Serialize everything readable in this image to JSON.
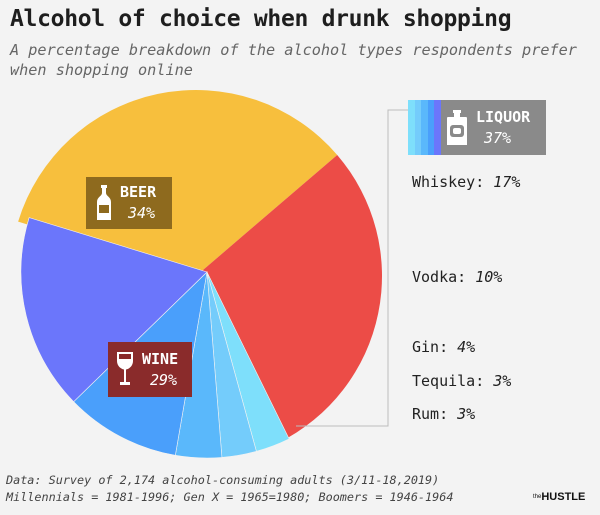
{
  "header": {
    "title": "Alcohol of choice when drunk shopping",
    "subtitle": "A percentage breakdown of the alcohol types respondents prefer when shopping online"
  },
  "chart_data": {
    "type": "pie",
    "title": "Alcohol of choice when drunk shopping",
    "subtitle": "A percentage breakdown of the alcohol types respondents prefer when shopping online",
    "slices": [
      {
        "name": "Beer",
        "value": 34,
        "color": "#f7bf3d",
        "group": "Beer"
      },
      {
        "name": "Wine",
        "value": 29,
        "color": "#ec4c47",
        "group": "Wine"
      },
      {
        "name": "Rum",
        "value": 3,
        "color": "#7edffb",
        "group": "Liquor"
      },
      {
        "name": "Tequila",
        "value": 3,
        "color": "#74ccfb",
        "group": "Liquor"
      },
      {
        "name": "Gin",
        "value": 4,
        "color": "#5ab8fb",
        "group": "Liquor"
      },
      {
        "name": "Vodka",
        "value": 10,
        "color": "#4a9ffb",
        "group": "Liquor"
      },
      {
        "name": "Whiskey",
        "value": 17,
        "color": "#6b76fb",
        "group": "Liquor"
      }
    ],
    "group_total": {
      "name": "Liquor",
      "value": 37
    }
  },
  "labels": {
    "beer": {
      "name": "BEER",
      "value": "34%"
    },
    "wine": {
      "name": "WINE",
      "value": "29%"
    },
    "liquor": {
      "name": "LIQUOR",
      "value": "37%"
    },
    "whiskey": {
      "name": "Whiskey:",
      "value": "17%"
    },
    "vodka": {
      "name": "Vodka:",
      "value": "10%"
    },
    "gin": {
      "name": "Gin:",
      "value": "4%"
    },
    "tequila": {
      "name": "Tequila:",
      "value": "3%"
    },
    "rum": {
      "name": "Rum:",
      "value": "3%"
    }
  },
  "footnote": {
    "line1": "Data: Survey of 2,174 alcohol-consuming adults (3/11-18,2019)",
    "line2": "Millennials = 1981-1996; Gen X = 1965=1980; Boomers = 1946-1964"
  },
  "brand": {
    "small": "the",
    "name": "HUSTLE"
  },
  "colors": {
    "liquor_stripes": [
      "#7edffb",
      "#74ccfb",
      "#5ab8fb",
      "#4a9ffb",
      "#6b76fb"
    ]
  }
}
